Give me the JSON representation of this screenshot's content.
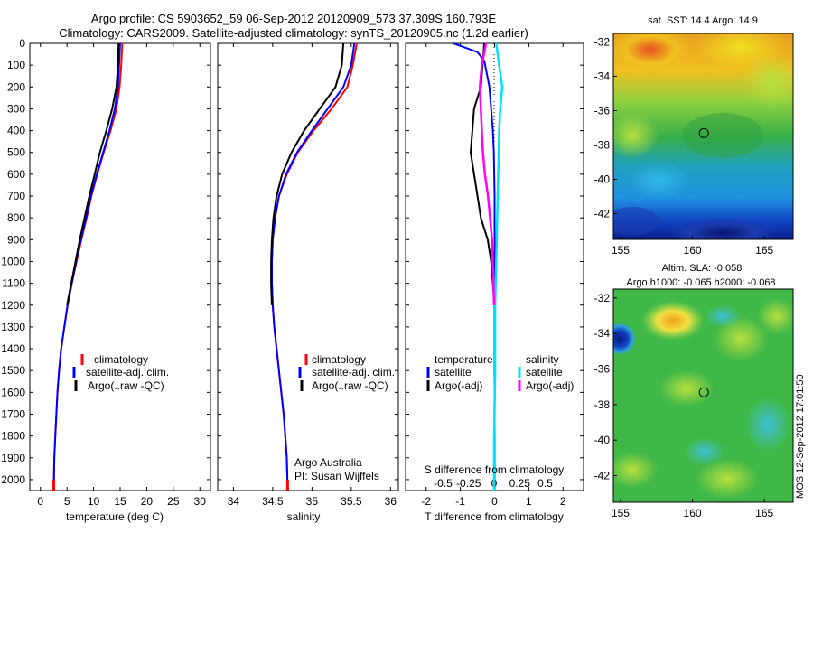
{
  "header": {
    "line1": "Argo profile: CS 5903652_59 06-Sep-2012 20120909_573 37.309S 160.793E",
    "line2": "Climatology: CARS2009. Satellite-adjusted climatology: synTS_20120905.nc (1.2d earlier)"
  },
  "colors": {
    "climatology": "#ff0000",
    "satellite": "#0000ff",
    "argo": "#000000",
    "salinity_satellite": "#00e0ff",
    "salinity_argo": "#ff00ff"
  },
  "y_axis": {
    "ticks": [
      "0",
      "100",
      "200",
      "300",
      "400",
      "500",
      "600",
      "700",
      "800",
      "900",
      "1000",
      "1100",
      "1200",
      "1300",
      "1400",
      "1500",
      "1600",
      "1700",
      "1800",
      "1900",
      "2000"
    ]
  },
  "chart_data": [
    {
      "type": "line",
      "id": "temperature",
      "xlabel": "temperature (deg C)",
      "xlim": [
        -2,
        32
      ],
      "ylim": [
        2050,
        0
      ],
      "xticks": [
        "0",
        "5",
        "10",
        "15",
        "20",
        "25",
        "30"
      ],
      "legend": [
        "climatology",
        "satellite-adj. clim.",
        "Argo(..raw -QC)"
      ],
      "series": [
        {
          "name": "climatology",
          "x": [
            15.4,
            15.2,
            14.9,
            14.3,
            13.2,
            11.9,
            10.7,
            9.6,
            8.7,
            7.7,
            6.8,
            5.9,
            5.1,
            4.5,
            3.9,
            3.5,
            3.2,
            3.0,
            2.8,
            2.6,
            2.5
          ],
          "y": [
            0,
            100,
            200,
            300,
            400,
            500,
            600,
            700,
            800,
            900,
            1000,
            1100,
            1200,
            1300,
            1400,
            1500,
            1600,
            1700,
            1800,
            1900,
            2050
          ]
        },
        {
          "name": "satellite-adj. clim.",
          "x": [
            15.0,
            14.8,
            14.6,
            14.0,
            13.0,
            11.8,
            10.6,
            9.5,
            8.6,
            7.6,
            6.7,
            5.9,
            5.1,
            4.5,
            3.9,
            3.5,
            3.2,
            3.0,
            2.8,
            2.6,
            2.5
          ],
          "y": [
            0,
            100,
            200,
            300,
            400,
            500,
            600,
            700,
            800,
            900,
            1000,
            1100,
            1200,
            1300,
            1400,
            1500,
            1600,
            1700,
            1800,
            1900,
            2050
          ]
        },
        {
          "name": "Argo(..raw -QC)",
          "x": [
            14.7,
            14.6,
            14.3,
            13.5,
            12.4,
            11.2,
            10.2,
            9.2,
            8.3,
            7.4,
            6.6,
            5.8,
            5.0
          ],
          "y": [
            0,
            100,
            200,
            300,
            400,
            500,
            600,
            700,
            800,
            900,
            1000,
            1100,
            1200
          ]
        }
      ]
    },
    {
      "type": "line",
      "id": "salinity",
      "xlabel": "salinity",
      "xlim": [
        33.8,
        36.1
      ],
      "ylim": [
        2050,
        0
      ],
      "xticks": [
        "34",
        "34.5",
        "35",
        "35.5",
        "36"
      ],
      "legend": [
        "climatology",
        "satellite-adj. clim.",
        "Argo(..raw -QC)"
      ],
      "annotation": [
        "Argo Australia",
        "PI: Susan Wijffels"
      ],
      "series": [
        {
          "name": "climatology",
          "x": [
            35.57,
            35.52,
            35.45,
            35.25,
            35.02,
            34.82,
            34.68,
            34.58,
            34.53,
            34.5,
            34.49,
            34.49,
            34.5,
            34.52,
            34.55,
            34.58,
            34.61,
            34.64,
            34.66,
            34.68,
            34.69
          ],
          "y": [
            0,
            100,
            200,
            300,
            400,
            500,
            600,
            700,
            800,
            900,
            1000,
            1100,
            1200,
            1300,
            1400,
            1500,
            1600,
            1700,
            1800,
            1900,
            2050
          ]
        },
        {
          "name": "satellite-adj. clim.",
          "x": [
            35.54,
            35.5,
            35.4,
            35.2,
            35.0,
            34.81,
            34.67,
            34.58,
            34.53,
            34.5,
            34.49,
            34.49,
            34.5,
            34.52,
            34.55,
            34.58,
            34.61,
            34.64,
            34.66,
            34.68,
            34.69
          ],
          "y": [
            0,
            100,
            200,
            300,
            400,
            500,
            600,
            700,
            800,
            900,
            1000,
            1100,
            1200,
            1300,
            1400,
            1500,
            1600,
            1700,
            1800,
            1900,
            2050
          ]
        },
        {
          "name": "Argo(..raw -QC)",
          "x": [
            35.4,
            35.38,
            35.3,
            35.1,
            34.9,
            34.74,
            34.62,
            34.55,
            34.51,
            34.49,
            34.48,
            34.48,
            34.49
          ],
          "y": [
            0,
            100,
            200,
            300,
            400,
            500,
            600,
            700,
            800,
            900,
            1000,
            1100,
            1200
          ]
        }
      ]
    },
    {
      "type": "line",
      "id": "differences",
      "xlabel": "T difference from climatology",
      "xlabel_top": "S difference from climatology",
      "xlim": [
        -2.6,
        2.6
      ],
      "ylim": [
        2050,
        0
      ],
      "xticks": [
        "-2",
        "-1",
        "0",
        "1",
        "2"
      ],
      "sticks": [
        "-0.5",
        "-0.25",
        "0",
        "0.25",
        "0.5"
      ],
      "legend_headers": [
        "temperature",
        "salinity"
      ],
      "legend": [
        "satellite",
        "Argo(-adj)",
        "satellite",
        "Argo(-adj)"
      ],
      "series": [
        {
          "name": "satellite",
          "x": [
            -1.2,
            -0.5,
            -0.3,
            -0.25,
            -0.15,
            -0.1,
            -0.05,
            -0.02,
            0,
            0,
            0,
            0
          ],
          "y": [
            0,
            40,
            80,
            120,
            200,
            300,
            400,
            500,
            700,
            900,
            1200,
            2050
          ]
        },
        {
          "name": "Argo(-adj)",
          "x": [
            -0.3,
            -0.35,
            -0.4,
            -0.6,
            -0.65,
            -0.7,
            -0.6,
            -0.5,
            -0.4,
            -0.2,
            -0.1,
            0
          ],
          "y": [
            0,
            100,
            200,
            300,
            400,
            500,
            600,
            700,
            800,
            900,
            1000,
            1200
          ]
        },
        {
          "name": "satellite",
          "x": [
            0.02,
            0.05,
            0.08,
            0.06,
            0.05,
            0.04,
            0.03,
            0.02,
            0.01,
            0.01,
            0.0,
            0.0
          ],
          "y": [
            0,
            100,
            200,
            300,
            400,
            600,
            800,
            1000,
            1200,
            1500,
            1800,
            2050
          ]
        },
        {
          "name": "Argo(-adj)",
          "x": [
            -0.08,
            -0.12,
            -0.14,
            -0.13,
            -0.12,
            -0.11,
            -0.09,
            -0.06,
            -0.04,
            -0.02,
            0
          ],
          "y": [
            0,
            100,
            200,
            300,
            400,
            500,
            600,
            700,
            800,
            900,
            1200
          ]
        }
      ]
    },
    {
      "type": "heatmap",
      "id": "sst-map",
      "title": "sat. SST: 14.4  Argo: 14.9",
      "xlim": [
        154.5,
        167
      ],
      "ylim": [
        -43.5,
        -31.5
      ],
      "xticks": [
        "155",
        "160",
        "165"
      ],
      "yticks": [
        "-32",
        "-34",
        "-36",
        "-38",
        "-40",
        "-42"
      ],
      "marker": {
        "lon": 160.793,
        "lat": -37.309
      }
    },
    {
      "type": "heatmap",
      "id": "sla-map",
      "title": "Altim. SLA: -0.058",
      "subtitle": "Argo h1000: -0.065 h2000: -0.068",
      "xlim": [
        154.5,
        167
      ],
      "ylim": [
        -43.5,
        -31.5
      ],
      "xticks": [
        "155",
        "160",
        "165"
      ],
      "yticks": [
        "-32",
        "-34",
        "-36",
        "-38",
        "-40",
        "-42"
      ],
      "marker": {
        "lon": 160.793,
        "lat": -37.309
      }
    }
  ],
  "stamp": "IMOS 12-Sep-2012 17:01:50"
}
